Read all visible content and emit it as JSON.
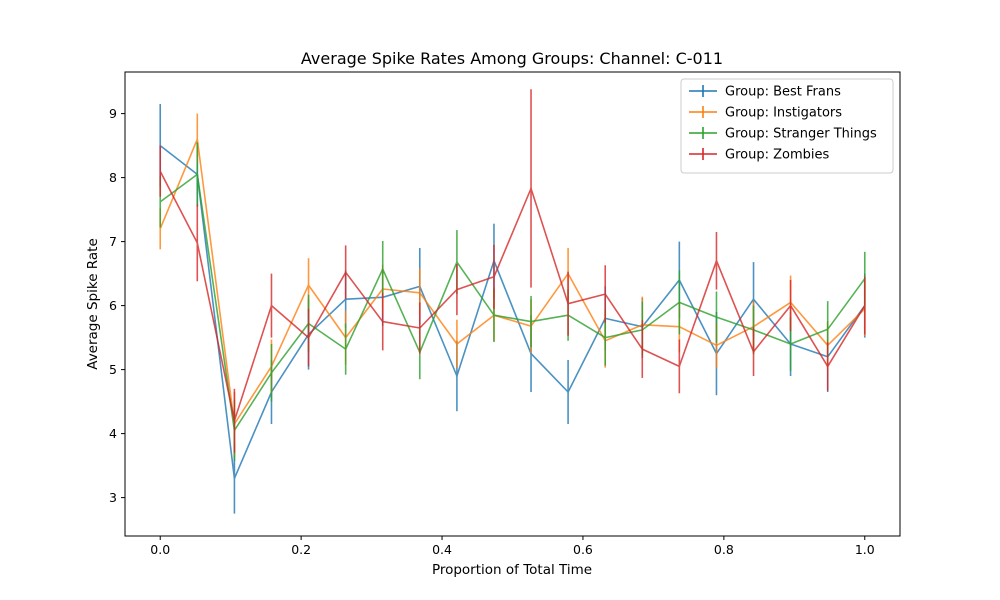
{
  "chart_data": {
    "type": "line",
    "title": "Average Spike Rates Among Groups: Channel: C-011",
    "xlabel": "Proportion of Total Time",
    "ylabel": "Average Spike Rate",
    "xlim": [
      -0.05,
      1.05
    ],
    "ylim": [
      2.4,
      9.65
    ],
    "xticks": [
      0.0,
      0.2,
      0.4,
      0.6,
      0.8,
      1.0
    ],
    "xtick_labels": [
      "0.0",
      "0.2",
      "0.4",
      "0.6",
      "0.8",
      "1.0"
    ],
    "yticks": [
      3,
      4,
      5,
      6,
      7,
      8,
      9
    ],
    "ytick_labels": [
      "3",
      "4",
      "5",
      "6",
      "7",
      "8",
      "9"
    ],
    "grid": false,
    "legend_position": "top-right",
    "x": [
      0.0,
      0.0526,
      0.1053,
      0.1579,
      0.2105,
      0.2632,
      0.3158,
      0.3684,
      0.4211,
      0.4737,
      0.5263,
      0.5789,
      0.6316,
      0.6842,
      0.7368,
      0.7895,
      0.8421,
      0.8947,
      0.9474,
      1.0
    ],
    "series": [
      {
        "name": "Group: Best Frans",
        "color": "#1f77b4",
        "values": [
          8.5,
          8.05,
          3.3,
          4.65,
          5.55,
          6.1,
          6.13,
          6.3,
          4.9,
          6.7,
          5.25,
          4.65,
          5.8,
          5.67,
          6.4,
          5.25,
          6.1,
          5.4,
          5.2,
          6.0
        ],
        "errors": [
          0.65,
          0.5,
          0.55,
          0.5,
          0.55,
          0.45,
          0.45,
          0.6,
          0.55,
          0.58,
          0.6,
          0.5,
          0.5,
          0.45,
          0.6,
          0.65,
          0.58,
          0.5,
          0.55,
          0.5
        ]
      },
      {
        "name": "Group: Instigators",
        "color": "#ff7f0e",
        "values": [
          7.2,
          8.6,
          4.15,
          5.05,
          6.32,
          5.5,
          6.26,
          6.2,
          5.4,
          5.85,
          5.68,
          6.5,
          5.45,
          5.7,
          5.67,
          5.38,
          5.67,
          6.05,
          5.38,
          5.95
        ],
        "errors": [
          0.32,
          0.4,
          0.5,
          0.42,
          0.42,
          0.42,
          0.38,
          0.38,
          0.38,
          0.4,
          0.42,
          0.4,
          0.42,
          0.44,
          0.4,
          0.36,
          0.4,
          0.42,
          0.38,
          0.42
        ]
      },
      {
        "name": "Group: Stranger Things",
        "color": "#2ca02c",
        "values": [
          7.62,
          8.05,
          4.05,
          4.95,
          5.72,
          5.32,
          6.57,
          5.27,
          6.68,
          5.85,
          5.75,
          5.85,
          5.5,
          5.62,
          6.05,
          5.82,
          5.62,
          5.4,
          5.63,
          6.42
        ],
        "errors": [
          0.4,
          0.5,
          0.48,
          0.45,
          0.45,
          0.4,
          0.44,
          0.42,
          0.5,
          0.42,
          0.4,
          0.4,
          0.44,
          0.44,
          0.5,
          0.4,
          0.38,
          0.42,
          0.44,
          0.42
        ]
      },
      {
        "name": "Group: Zombies",
        "color": "#d62728",
        "values": [
          8.1,
          6.98,
          4.2,
          6.0,
          5.5,
          6.52,
          5.75,
          5.65,
          6.25,
          6.45,
          7.83,
          6.03,
          6.18,
          5.32,
          5.05,
          6.7,
          5.28,
          6.0,
          5.05,
          6.0
        ],
        "errors": [
          0.4,
          0.6,
          0.5,
          0.5,
          0.45,
          0.42,
          0.45,
          0.4,
          0.4,
          0.5,
          1.55,
          0.5,
          0.45,
          0.45,
          0.42,
          0.45,
          0.38,
          0.4,
          0.38,
          0.45
        ]
      }
    ]
  }
}
